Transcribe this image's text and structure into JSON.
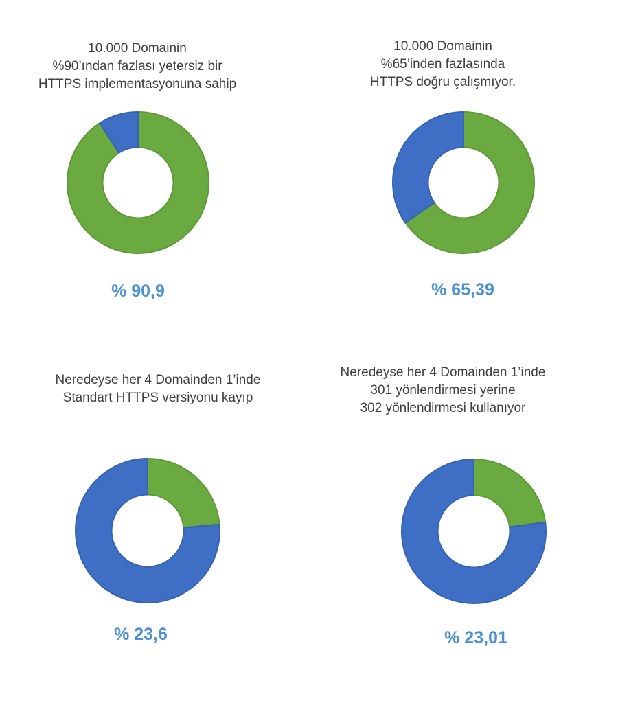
{
  "colors": {
    "green": "#6aaa40",
    "green_stroke": "#5b9a35",
    "blue": "#3e6fc4",
    "blue_stroke": "#3562b4",
    "pct_text": "#4a90d9"
  },
  "chart_data": [
    {
      "type": "pie",
      "style": "donut",
      "title_lines": [
        "10.000 Domainin",
        "%90’ından fazlası yetersiz bir",
        "HTTPS implementasyonuna sahip"
      ],
      "slices": [
        {
          "value": 90.9,
          "color": "green"
        },
        {
          "value": 9.1,
          "color": "blue"
        }
      ],
      "label": "% 90,9"
    },
    {
      "type": "pie",
      "style": "donut",
      "title_lines": [
        "10.000 Domainin",
        "%65’inden fazlasında",
        "HTTPS doğru çalışmıyor."
      ],
      "slices": [
        {
          "value": 65.39,
          "color": "green"
        },
        {
          "value": 34.61,
          "color": "blue"
        }
      ],
      "label": "% 65,39"
    },
    {
      "type": "pie",
      "style": "donut",
      "title_lines": [
        "Neredeyse her 4 Domainden 1’inde",
        "Standart HTTPS versiyonu kayıp"
      ],
      "slices": [
        {
          "value": 23.6,
          "color": "green"
        },
        {
          "value": 76.4,
          "color": "blue"
        }
      ],
      "label": "% 23,6"
    },
    {
      "type": "pie",
      "style": "donut",
      "title_lines": [
        "Neredeyse her 4 Domainden 1’inde",
        "301 yönlendirmesi yerine",
        "302 yönlendirmesi kullanıyor"
      ],
      "slices": [
        {
          "value": 23.01,
          "color": "green"
        },
        {
          "value": 76.99,
          "color": "blue"
        }
      ],
      "label": "% 23,01"
    }
  ]
}
